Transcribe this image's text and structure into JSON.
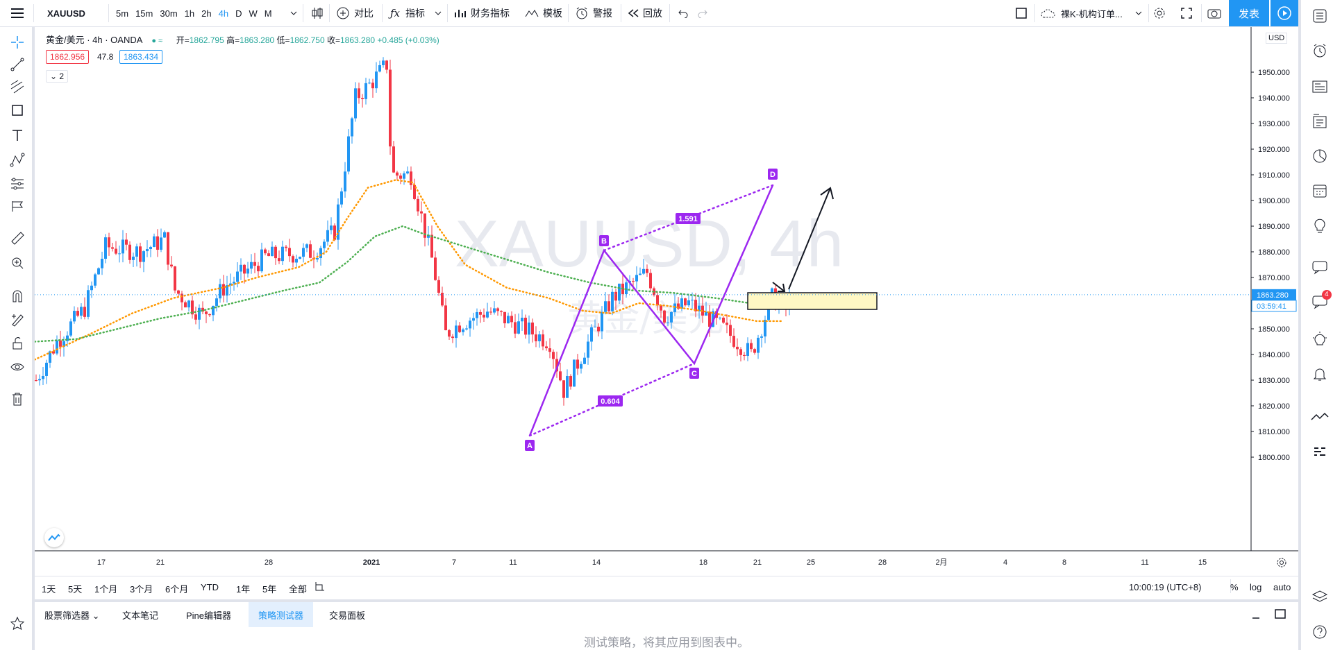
{
  "topbar": {
    "symbol": "XAUUSD",
    "intervals": [
      "5m",
      "15m",
      "30m",
      "1h",
      "2h",
      "4h",
      "D",
      "W",
      "M"
    ],
    "active_interval": "4h",
    "compare": "对比",
    "indicators": "指标",
    "financials": "财务指标",
    "templates": "模板",
    "alert": "警报",
    "replay": "回放",
    "layout_name": "裸K-机构订单...",
    "publish": "发表"
  },
  "legend": {
    "title": "黄金/美元 · 4h · OANDA",
    "open_label": "开=",
    "open": "1862.795",
    "high_label": "高=",
    "high": "1863.280",
    "low_label": "低=",
    "low": "1862.750",
    "close_label": "收=",
    "close": "1863.280",
    "change": "+0.485 (+0.03%)",
    "bid": "1862.956",
    "spread": "47.8",
    "ask": "1863.434",
    "collapse_count": "2"
  },
  "watermark": {
    "symbol": "XAUUSD, 4h",
    "name": "黄金/美元"
  },
  "price_axis": {
    "currency": "USD",
    "ticks": [
      "1950.000",
      "1940.000",
      "1930.000",
      "1920.000",
      "1910.000",
      "1900.000",
      "1890.000",
      "1880.000",
      "1870.000",
      "1860.000",
      "1850.000",
      "1840.000",
      "1830.000",
      "1820.000",
      "1810.000",
      "1800.000"
    ],
    "last_price": "1863.280",
    "countdown": "03:59:41"
  },
  "time_axis": {
    "ticks": [
      "17",
      "21",
      "28",
      "2021",
      "7",
      "11",
      "14",
      "18",
      "21",
      "25",
      "28",
      "2月",
      "4",
      "8",
      "11",
      "15"
    ]
  },
  "pattern": {
    "points": [
      "A",
      "B",
      "C",
      "D"
    ],
    "ratio_bd": "1.591",
    "ratio_ac": "0.604"
  },
  "colors": {
    "up": "#26a69a",
    "up_candle": "#2196f3",
    "down_candle": "#f23645",
    "ma_fast": "#ff9800",
    "ma_slow": "#4caf50",
    "pattern": "#9c27f0",
    "accent": "#2196f3"
  },
  "timebar": {
    "ranges": [
      "1天",
      "5天",
      "1个月",
      "3个月",
      "6个月",
      "YTD",
      "1年",
      "5年",
      "全部"
    ],
    "clock": "10:00:19 (UTC+8)",
    "percent": "%",
    "log": "log",
    "auto": "auto"
  },
  "bottom_tabs": {
    "items": [
      "股票筛选器",
      "文本笔记",
      "Pine编辑器",
      "策略测试器",
      "交易面板"
    ],
    "active": "策略测试器"
  },
  "strategy_msg": "测试策略，将其应用到图表中。",
  "notifications_badge": "4"
}
